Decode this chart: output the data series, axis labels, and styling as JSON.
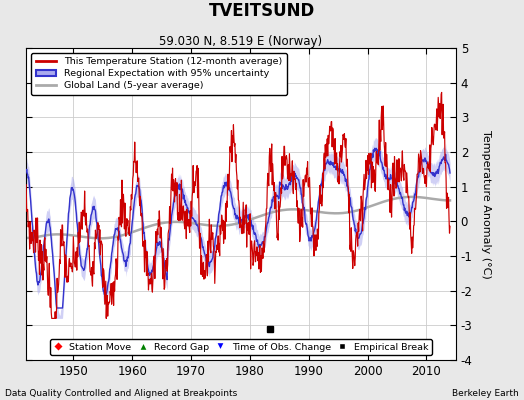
{
  "title": "TVEITSUND",
  "subtitle": "59.030 N, 8.519 E (Norway)",
  "ylabel": "Temperature Anomaly (°C)",
  "footer_left": "Data Quality Controlled and Aligned at Breakpoints",
  "footer_right": "Berkeley Earth",
  "xlim": [
    1942,
    2015
  ],
  "ylim": [
    -4,
    5
  ],
  "yticks": [
    -4,
    -3,
    -2,
    -1,
    0,
    1,
    2,
    3,
    4,
    5
  ],
  "xticks": [
    1950,
    1960,
    1970,
    1980,
    1990,
    2000,
    2010
  ],
  "bg_color": "#e8e8e8",
  "plot_bg_color": "#ffffff",
  "grid_color": "#cccccc",
  "red_color": "#cc0000",
  "blue_color": "#3333cc",
  "blue_fill_color": "#aaaaee",
  "gray_color": "#aaaaaa",
  "empirical_break_year": 1983.5,
  "empirical_break_value": -3.1,
  "legend_entries": [
    "This Temperature Station (12-month average)",
    "Regional Expectation with 95% uncertainty",
    "Global Land (5-year average)"
  ]
}
